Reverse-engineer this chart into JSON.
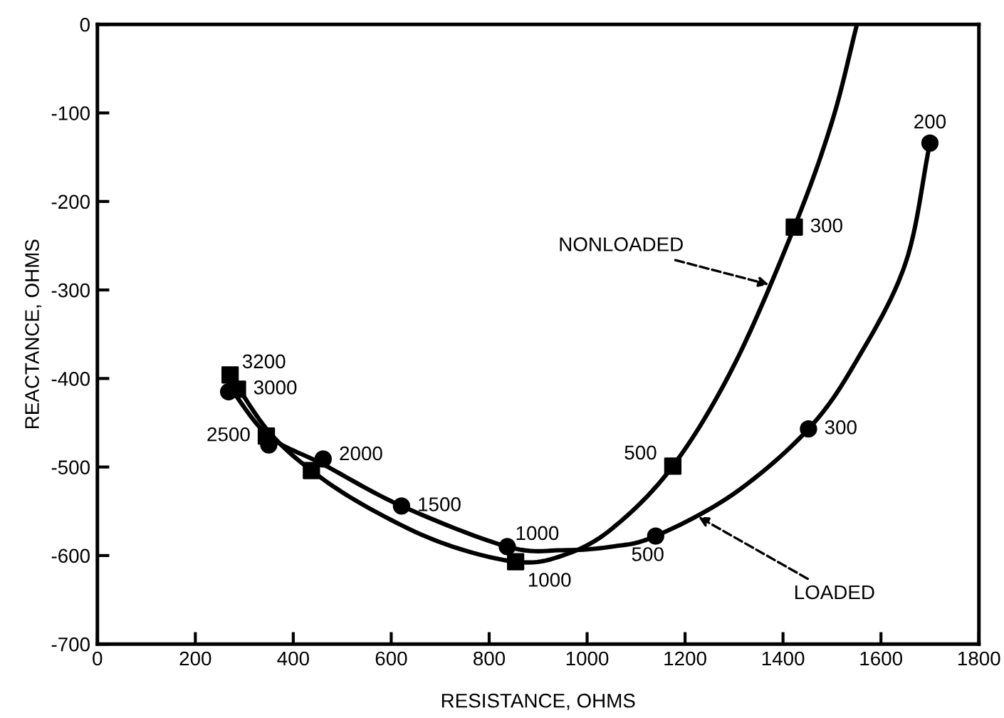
{
  "chart_data": {
    "type": "line",
    "xlabel": "RESISTANCE, OHMS",
    "ylabel": "REACTANCE, OHMS",
    "xlim": [
      0,
      1800
    ],
    "ylim": [
      -700,
      0
    ],
    "xticks": [
      0,
      200,
      400,
      600,
      800,
      1000,
      1200,
      1400,
      1600,
      1800
    ],
    "yticks": [
      -700,
      -600,
      -500,
      -400,
      -300,
      -200,
      -100,
      0
    ],
    "grid": false,
    "series": [
      {
        "marker": "none",
        "line_style": "solid",
        "color": "#000000",
        "x": [
          275,
          350,
          437,
          550,
          700,
          854,
          950,
          1050,
          1175,
          1300,
          1423,
          1500,
          1551
        ],
        "values": [
          -400,
          -460,
          -504,
          -545,
          -585,
          -607,
          -600,
          -570,
          -499,
          -385,
          -229,
          -110,
          0
        ]
      },
      {
        "marker": "none",
        "line_style": "solid",
        "color": "#000000",
        "x": [
          270,
          350,
          461,
          621,
          837,
          950,
          1050,
          1140,
          1300,
          1452,
          1550,
          1650,
          1700
        ],
        "values": [
          -410,
          -465,
          -497,
          -544,
          -590,
          -594,
          -590,
          -578,
          -530,
          -457,
          -380,
          -270,
          -134
        ]
      },
      {
        "type": "scatter",
        "marker": "square",
        "color": "#000000",
        "x": [
          271,
          286,
          345,
          437,
          854,
          1175,
          1423
        ],
        "values": [
          -396,
          -412,
          -465,
          -504,
          -607,
          -499,
          -229
        ]
      },
      {
        "type": "scatter",
        "marker": "circle",
        "color": "#000000",
        "x": [
          268,
          350,
          461,
          621,
          837,
          1140,
          1452,
          1700
        ],
        "values": [
          -415,
          -475,
          -491,
          -544,
          -590,
          -578,
          -457,
          -134
        ]
      }
    ],
    "annotations": [
      {
        "text": "3200",
        "x": 271,
        "y": -396
      },
      {
        "text": "3000",
        "x": 286,
        "y": -412
      },
      {
        "text": "2500",
        "x": 345,
        "y": -465
      },
      {
        "text": "2000",
        "x": 461,
        "y": -491
      },
      {
        "text": "1500",
        "x": 621,
        "y": -544
      },
      {
        "text": "1000",
        "x": 837,
        "y": -590
      },
      {
        "text": "1000",
        "x": 854,
        "y": -607
      },
      {
        "text": "500",
        "x": 1175,
        "y": -499
      },
      {
        "text": "300",
        "x": 1423,
        "y": -229
      },
      {
        "text": "500",
        "x": 1140,
        "y": -578
      },
      {
        "text": "300",
        "x": 1452,
        "y": -457
      },
      {
        "text": "200",
        "x": 1700,
        "y": -134
      },
      {
        "text": "NONLOADED",
        "x": 1379,
        "y": -295
      },
      {
        "text": "LOADED",
        "x": 1220,
        "y": -554
      }
    ]
  }
}
